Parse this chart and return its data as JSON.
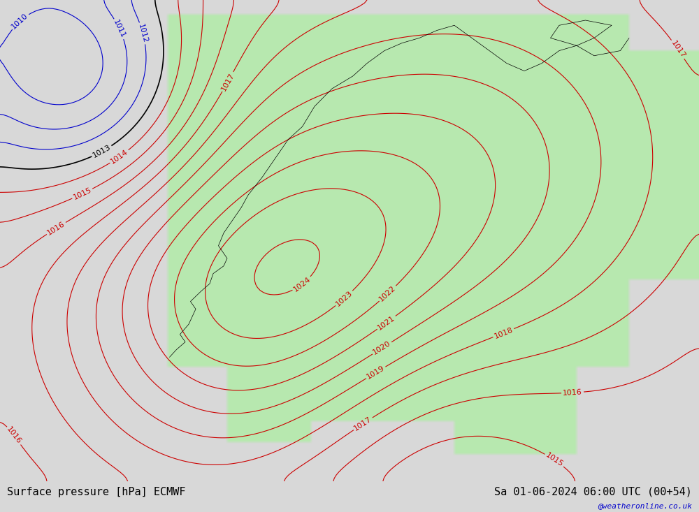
{
  "title_left": "Surface pressure [hPa] ECMWF",
  "title_right": "Sa 01-06-2024 06:00 UTC (00+54)",
  "watermark": "@weatheronline.co.uk",
  "bg_color": "#d8d8d8",
  "land_color": "#b8e8b0",
  "sea_color": "#d8d8d8",
  "contour_color_low": "#0000cc",
  "contour_color_high": "#cc0000",
  "contour_color_mid": "#000000",
  "label_fontsize": 9,
  "title_fontsize": 11,
  "watermark_fontsize": 8,
  "pressure_min": 1010,
  "pressure_max": 1022,
  "xlim": [
    0,
    1000
  ],
  "ylim": [
    0,
    733
  ]
}
